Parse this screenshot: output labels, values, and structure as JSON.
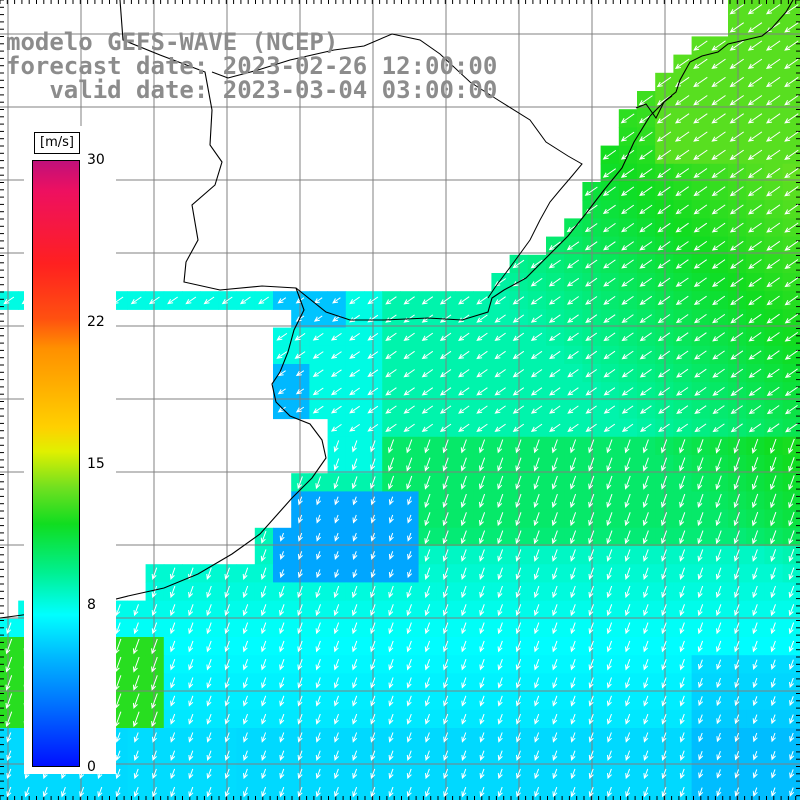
{
  "title": {
    "line1": "modelo GEFS-WAVE (NCEP)",
    "line2": "forecast date: 2023-02-26 12:00:00",
    "line3": "   valid date: 2023-03-04 03:00:00"
  },
  "legend": {
    "unit": "[m/s]",
    "ticks": [
      {
        "value": 30,
        "label": "30"
      },
      {
        "value": 22,
        "label": "22"
      },
      {
        "value": 15,
        "label": "15"
      },
      {
        "value": 8,
        "label": "8"
      },
      {
        "value": 0,
        "label": "0"
      }
    ],
    "range": [
      0,
      30
    ]
  },
  "map": {
    "variable": "wind speed",
    "units": "m/s",
    "coastline_color": "#000000",
    "grid_color": "#808080",
    "arrow_color": "#ffffff",
    "land_color": "#ffffff"
  }
}
